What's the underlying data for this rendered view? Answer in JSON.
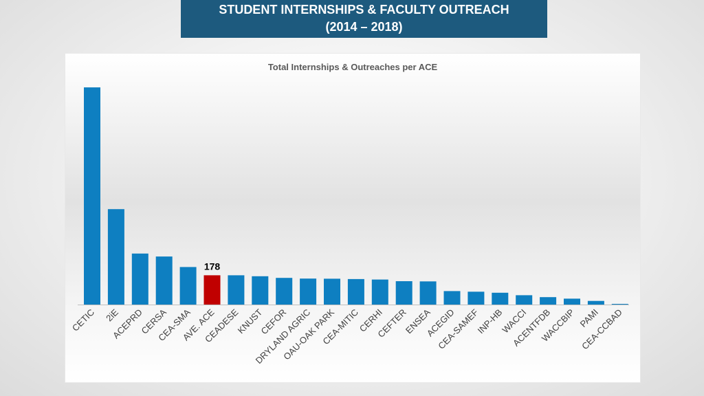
{
  "header": {
    "line1": "STUDENT INTERNSHIPS & FACULTY OUTREACH",
    "line2": "(2014 – 2018)"
  },
  "chart_data": {
    "type": "bar",
    "title": "Total Internships & Outreaches per ACE",
    "categories": [
      "CETIC",
      "2iE",
      "ACEPRD",
      "CERSA",
      "CEA-SMA",
      "AVE. ACE",
      "CEADESE",
      "KNUST",
      "CEFOR",
      "DRYLAND AGRIC",
      "OAU-OAK PARK",
      "CEA-MITIC",
      "CERHI",
      "CEFTER",
      "ENSEA",
      "ACEGID",
      "CEA-SAMEF",
      "INP-HB",
      "WACCI",
      "ACENTFDB",
      "WACCBIP",
      "PAMI",
      "CEA-CCBAD"
    ],
    "values": [
      1320,
      580,
      310,
      292,
      228,
      178,
      178,
      172,
      162,
      158,
      157,
      155,
      152,
      142,
      141,
      82,
      78,
      72,
      57,
      45,
      36,
      22,
      3
    ],
    "highlight_index": 5,
    "data_labels": [
      {
        "index": 5,
        "text": "178"
      }
    ],
    "ylim": [
      0,
      1400
    ],
    "grid": false,
    "legend": "none",
    "colors": {
      "bar": "#0e7fc1",
      "highlight": "#c00000",
      "axis": "#bfbfbf"
    }
  }
}
